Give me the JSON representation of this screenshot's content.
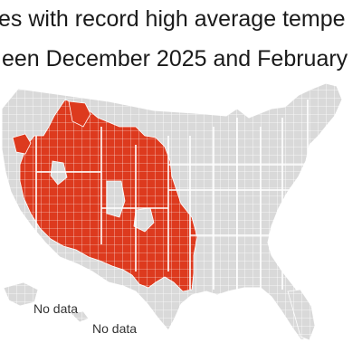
{
  "title": {
    "line1": "es with record high average tempe",
    "line2": "een December 2025 and February"
  },
  "legend": {
    "record_color": "#dd3a1e",
    "other_color": "#d9d9d9",
    "border_color": "#ffffff"
  },
  "annotations": {
    "alaska_no_data": "No data",
    "hawaii_no_data": "No data"
  }
}
